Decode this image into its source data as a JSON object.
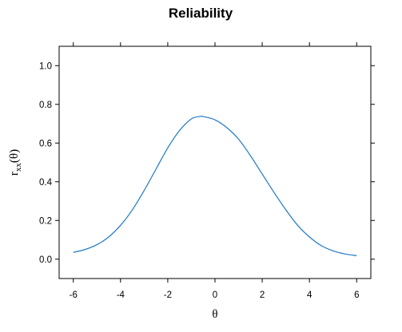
{
  "chart_data": {
    "type": "line",
    "title": "Reliability",
    "xlabel": "θ",
    "ylabel": {
      "main": "r",
      "subscript": "xx",
      "suffix": "(θ)"
    },
    "xlim": [
      -6.6,
      6.6
    ],
    "ylim": [
      -0.1,
      1.1
    ],
    "x_ticks": [
      -6,
      -4,
      -2,
      0,
      2,
      4,
      6
    ],
    "x_tick_labels": [
      "-6",
      "-4",
      "-2",
      "0",
      "2",
      "4",
      "6"
    ],
    "y_ticks": [
      0.0,
      0.2,
      0.4,
      0.6,
      0.8,
      1.0
    ],
    "y_tick_labels": [
      "0.0",
      "0.2",
      "0.4",
      "0.6",
      "0.8",
      "1.0"
    ],
    "grid": false,
    "series": [
      {
        "color": "#1f78c8",
        "x": [
          -6,
          -5.5,
          -5,
          -4.5,
          -4,
          -3.5,
          -3,
          -2.5,
          -2,
          -1.5,
          -1,
          -0.6,
          -0.5,
          0,
          0.5,
          1,
          1.5,
          2,
          2.5,
          3,
          3.5,
          4,
          4.5,
          5,
          5.5,
          6
        ],
        "y": [
          0.035,
          0.05,
          0.075,
          0.115,
          0.175,
          0.255,
          0.355,
          0.465,
          0.575,
          0.665,
          0.725,
          0.738,
          0.737,
          0.72,
          0.68,
          0.62,
          0.535,
          0.44,
          0.345,
          0.255,
          0.175,
          0.115,
          0.07,
          0.043,
          0.027,
          0.018
        ]
      }
    ]
  }
}
